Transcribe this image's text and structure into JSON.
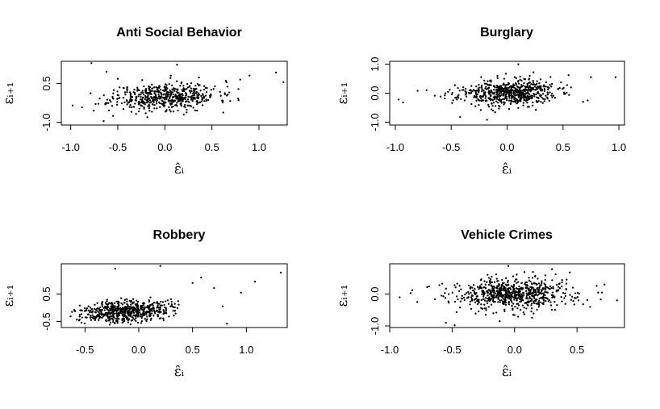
{
  "chart_data": [
    {
      "type": "scatter",
      "title": "Anti Social Behavior",
      "xlabel": "ε̂ᵢ",
      "ylabel": "εᵢ₊₁",
      "xlim": [
        -1.1,
        1.3
      ],
      "ylim": [
        -1.1,
        1.35
      ],
      "xticks": [
        -1.0,
        -0.5,
        0.0,
        0.5,
        1.0
      ],
      "xtick_labels": [
        "-1.0",
        "-0.5",
        "0.0",
        "0.5",
        "1.0"
      ],
      "yticks": [
        -1.0,
        0.5
      ],
      "ytick_labels": [
        "-1.0",
        "0.5"
      ],
      "grid": false,
      "cloud": {
        "n": 560,
        "x_mean": 0.0,
        "x_sd": 0.28,
        "y_mean": 0.0,
        "y_sd": 0.26,
        "corr": 0.15,
        "seed": 11
      },
      "outliers": [
        [
          -0.78,
          1.28
        ],
        [
          -0.88,
          -0.42
        ],
        [
          -0.98,
          -0.35
        ],
        [
          -0.65,
          -0.95
        ],
        [
          -0.62,
          0.95
        ],
        [
          1.18,
          0.92
        ],
        [
          1.26,
          0.55
        ],
        [
          0.9,
          0.8
        ],
        [
          0.8,
          0.65
        ],
        [
          0.13,
          1.22
        ],
        [
          -0.55,
          -0.75
        ],
        [
          0.62,
          -0.62
        ]
      ]
    },
    {
      "type": "scatter",
      "title": "Burglary",
      "xlabel": "ε̂ᵢ",
      "ylabel": "εᵢ₊₁",
      "xlim": [
        -1.05,
        1.05
      ],
      "ylim": [
        -1.1,
        1.1
      ],
      "xticks": [
        -1.0,
        -0.5,
        0.0,
        0.5,
        1.0
      ],
      "xtick_labels": [
        "-1.0",
        "-0.5",
        "0.0",
        "0.5",
        "1.0"
      ],
      "yticks": [
        -1.0,
        0.0,
        1.0
      ],
      "ytick_labels": [
        "-1.0",
        "0.0",
        "1.0"
      ],
      "grid": false,
      "cloud": {
        "n": 620,
        "x_mean": 0.0,
        "x_sd": 0.22,
        "y_mean": 0.0,
        "y_sd": 0.22,
        "corr": 0.1,
        "seed": 23
      },
      "outliers": [
        [
          -0.8,
          0.08
        ],
        [
          -0.93,
          -0.32
        ],
        [
          -0.97,
          -0.22
        ],
        [
          -0.72,
          0.1
        ],
        [
          0.97,
          0.55
        ],
        [
          0.75,
          0.55
        ],
        [
          0.72,
          -0.25
        ],
        [
          0.68,
          -0.3
        ],
        [
          -0.42,
          -0.82
        ],
        [
          -0.18,
          -0.92
        ],
        [
          0.1,
          1.0
        ],
        [
          0.55,
          0.62
        ]
      ]
    },
    {
      "type": "scatter",
      "title": "Robbery",
      "xlabel": "ε̂ᵢ",
      "ylabel": "εᵢ₊₁",
      "xlim": [
        -0.72,
        1.38
      ],
      "ylim": [
        -0.72,
        1.6
      ],
      "xticks": [
        -0.5,
        0.0,
        0.5,
        1.0
      ],
      "xtick_labels": [
        "-0.5",
        "0.0",
        "0.5",
        "1.0"
      ],
      "yticks": [
        -0.5,
        0.5
      ],
      "ytick_labels": [
        "-0.5",
        "0.5"
      ],
      "grid": false,
      "cloud": {
        "n": 600,
        "x_mean": -0.12,
        "x_sd": 0.2,
        "y_mean": -0.12,
        "y_sd": 0.2,
        "corr": 0.2,
        "seed": 37
      },
      "outliers": [
        [
          1.32,
          1.28
        ],
        [
          1.08,
          0.95
        ],
        [
          0.95,
          0.55
        ],
        [
          0.82,
          -0.58
        ],
        [
          0.58,
          1.1
        ],
        [
          0.7,
          0.72
        ],
        [
          0.2,
          1.52
        ],
        [
          -0.22,
          1.42
        ],
        [
          -0.62,
          -0.15
        ],
        [
          -0.55,
          -0.32
        ],
        [
          0.5,
          0.9
        ],
        [
          0.78,
          0.05
        ]
      ]
    },
    {
      "type": "scatter",
      "title": "Vehicle Crimes",
      "xlabel": "ε̂ᵢ",
      "ylabel": "εᵢ₊₁",
      "xlim": [
        -1.0,
        0.88
      ],
      "ylim": [
        -1.05,
        0.95
      ],
      "xticks": [
        -1.0,
        -0.5,
        0.0,
        0.5
      ],
      "xtick_labels": [
        "-1.0",
        "-0.5",
        "0.0",
        "0.5"
      ],
      "yticks": [
        -1.0,
        0.0
      ],
      "ytick_labels": [
        "-1.0",
        "0.0"
      ],
      "grid": false,
      "cloud": {
        "n": 720,
        "x_mean": 0.0,
        "x_sd": 0.24,
        "y_mean": 0.0,
        "y_sd": 0.25,
        "corr": 0.05,
        "seed": 53
      },
      "outliers": [
        [
          -0.92,
          -0.1
        ],
        [
          -0.82,
          0.12
        ],
        [
          -0.78,
          -0.25
        ],
        [
          -0.7,
          0.22
        ],
        [
          0.82,
          -0.2
        ],
        [
          0.72,
          0.3
        ],
        [
          0.7,
          0.05
        ],
        [
          -0.55,
          -0.9
        ],
        [
          -0.48,
          -0.98
        ],
        [
          -0.05,
          0.88
        ],
        [
          0.3,
          0.78
        ],
        [
          -0.12,
          -0.85
        ]
      ]
    }
  ]
}
